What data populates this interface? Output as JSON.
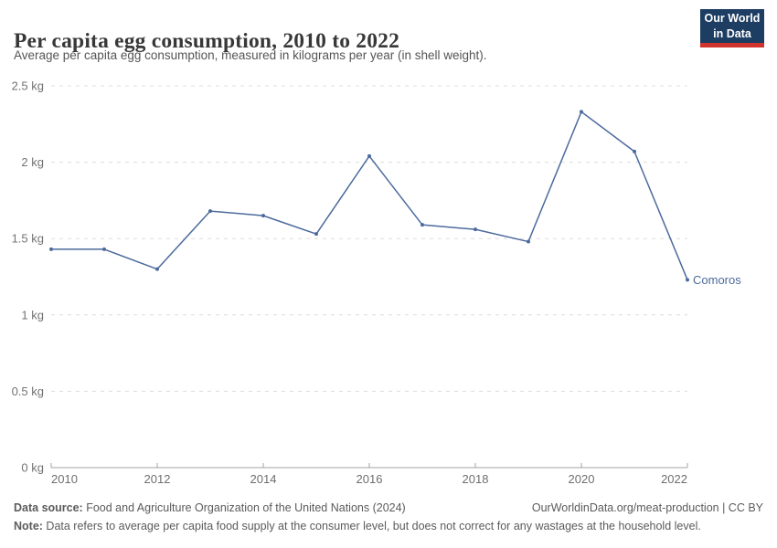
{
  "header": {
    "title": "Per capita egg consumption, 2010 to 2022",
    "subtitle": "Average per capita egg consumption, measured in kilograms per year (in shell weight).",
    "logo": {
      "line1": "Our World",
      "line2": "in Data"
    }
  },
  "chart_data": {
    "type": "line",
    "title": "Per capita egg consumption, 2010 to 2022",
    "x": [
      2010,
      2011,
      2012,
      2013,
      2014,
      2015,
      2016,
      2017,
      2018,
      2019,
      2020,
      2021,
      2022
    ],
    "series": [
      {
        "name": "Comoros",
        "values": [
          1.43,
          1.43,
          1.3,
          1.68,
          1.65,
          1.53,
          2.04,
          1.59,
          1.56,
          1.48,
          2.33,
          2.07,
          1.23
        ]
      }
    ],
    "ylabel": "",
    "xlabel": "",
    "unit": "kg",
    "ylim": [
      0,
      2.5
    ],
    "yticks": [
      {
        "value": 0,
        "label": "0 kg"
      },
      {
        "value": 0.5,
        "label": "0.5 kg"
      },
      {
        "value": 1,
        "label": "1 kg"
      },
      {
        "value": 1.5,
        "label": "1.5 kg"
      },
      {
        "value": 2,
        "label": "2 kg"
      },
      {
        "value": 2.5,
        "label": "2.5 kg"
      }
    ],
    "xticks": [
      2010,
      2012,
      2014,
      2016,
      2018,
      2020,
      2022
    ],
    "grid": true,
    "legend_position": "end-of-line-label",
    "line_color": "#4C6A9C",
    "grid_color": "#dcdcdc",
    "axis_color": "#a3a3a3",
    "tick_label_color": "#6e6e6e"
  },
  "footer": {
    "source_label": "Data source:",
    "source_text": " Food and Agriculture Organization of the United Nations (2024)",
    "link": "OurWorldinData.org/meat-production | CC BY",
    "note_label": "Note:",
    "note_text": " Data refers to average per capita food supply at the consumer level, but does not correct for any wastages at the household level."
  }
}
